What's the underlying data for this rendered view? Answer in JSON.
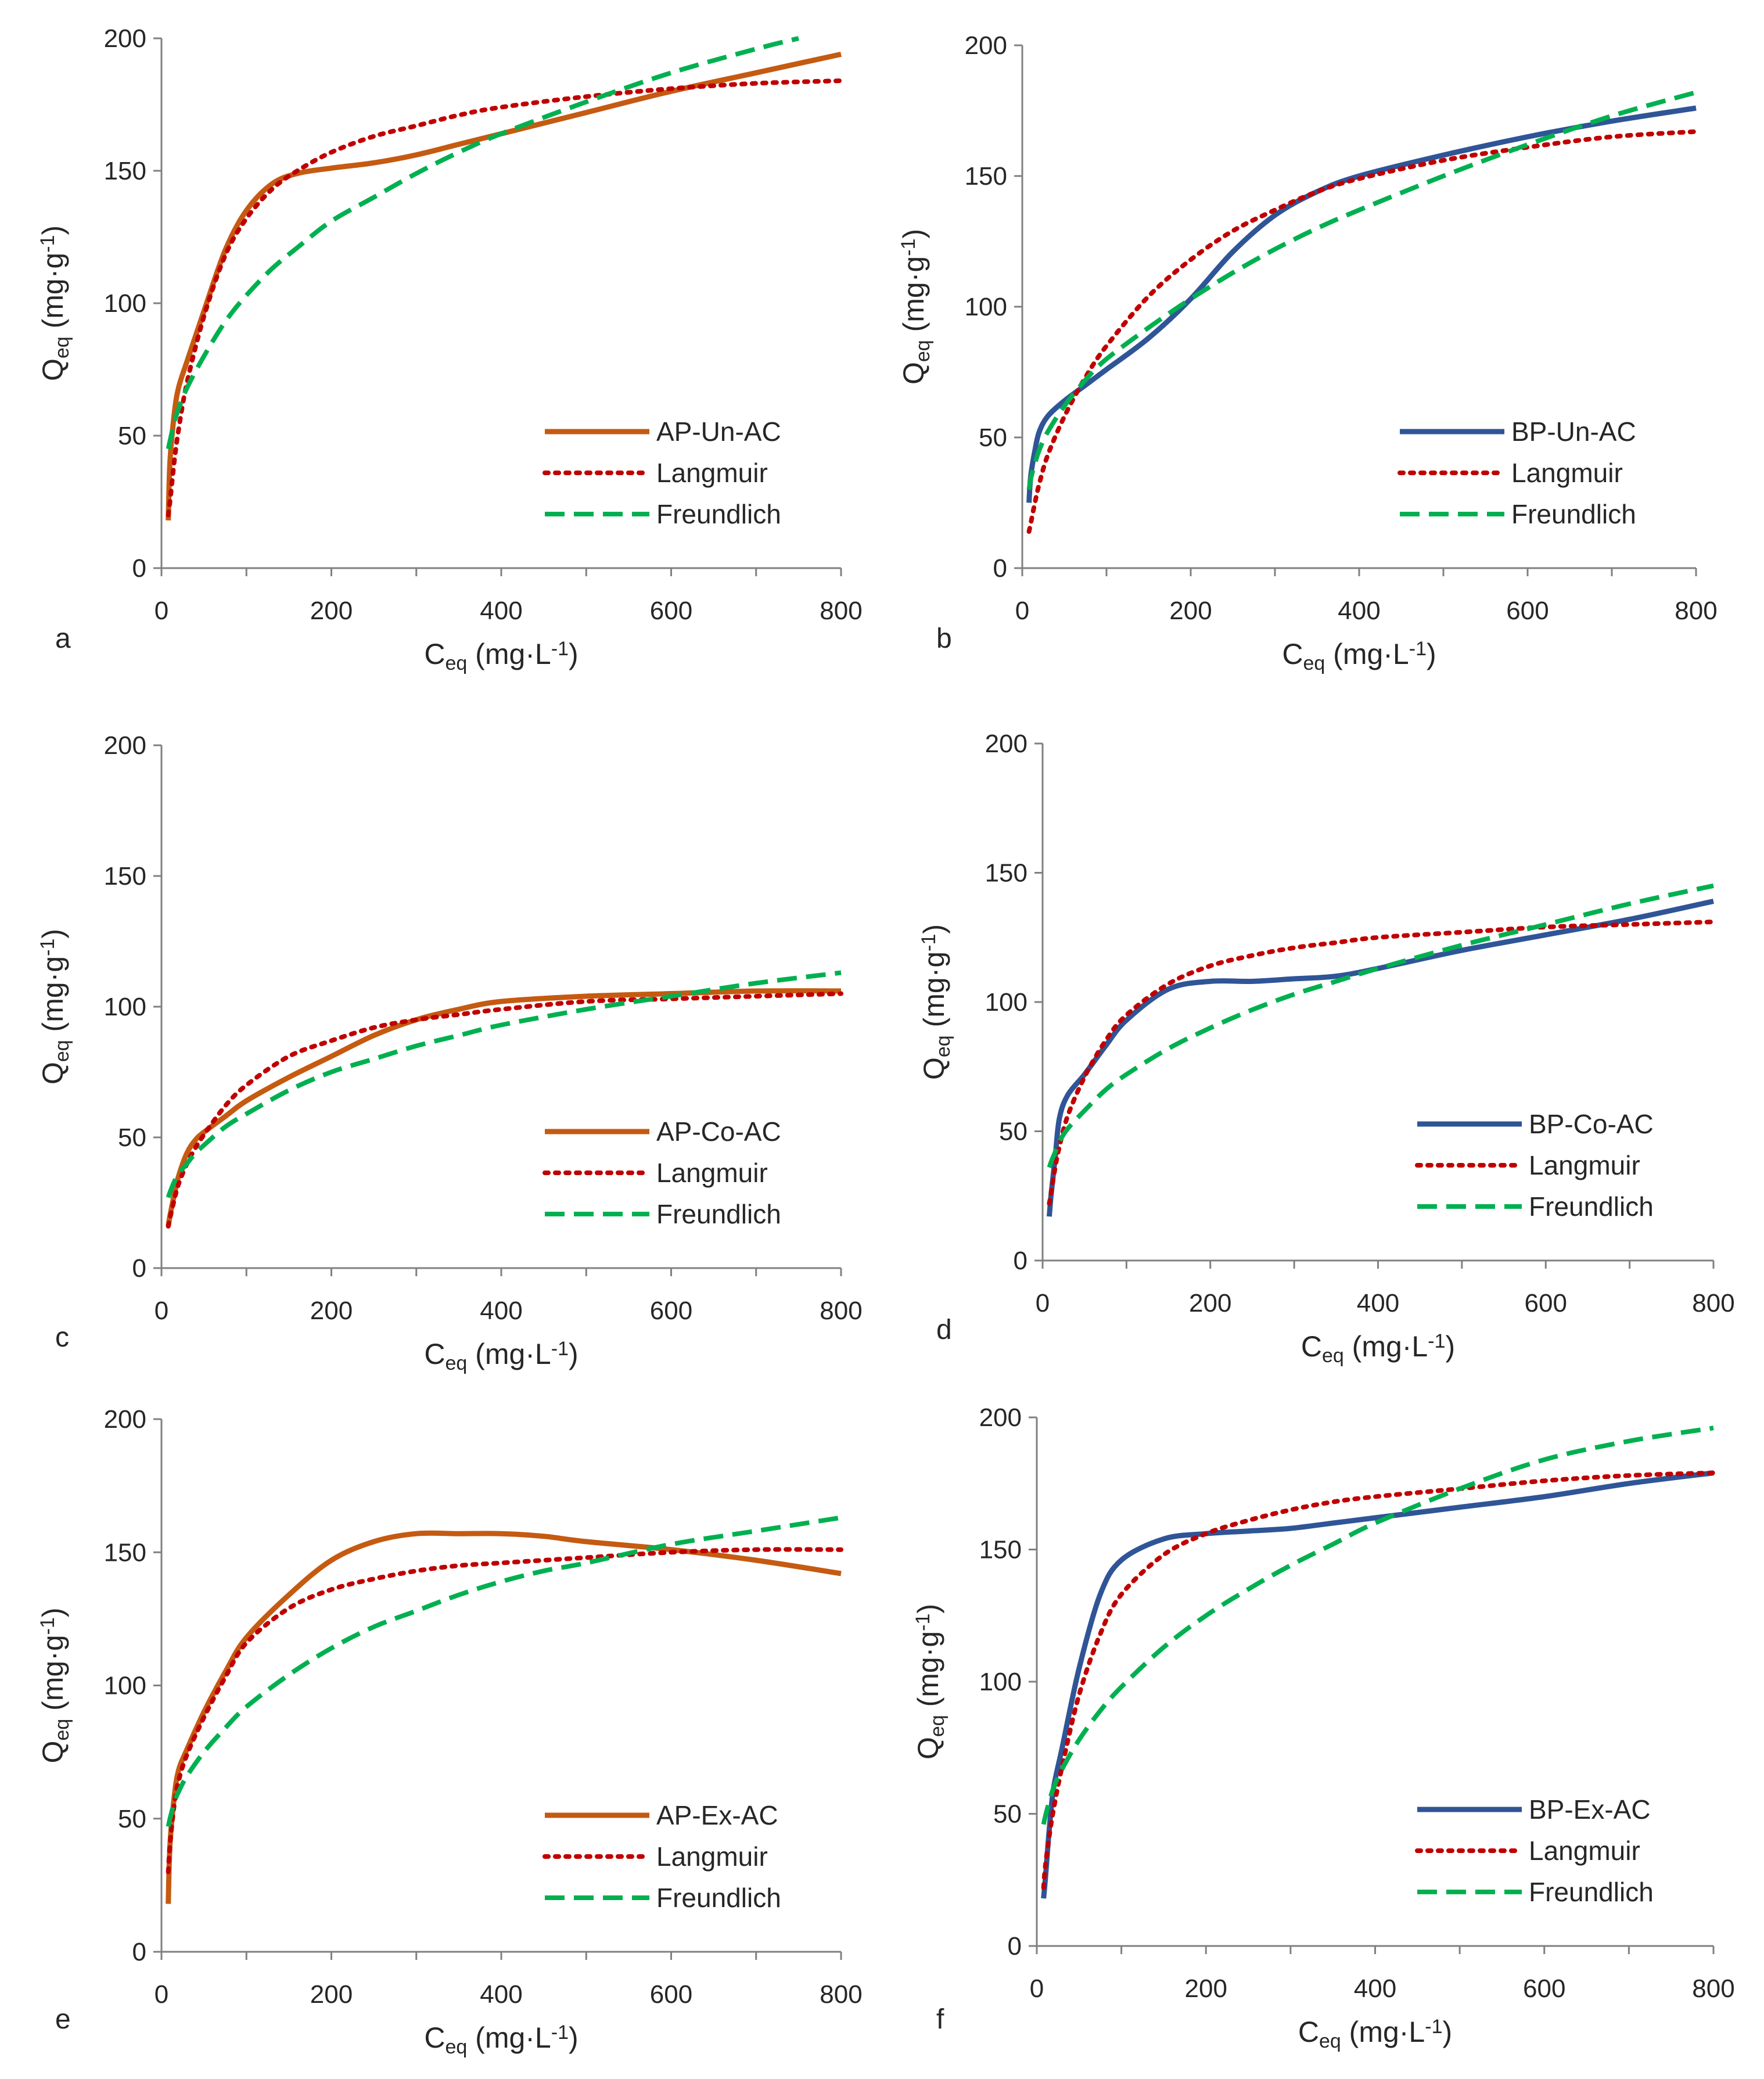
{
  "chart_data": [
    {
      "id": "a",
      "panel_label": "a",
      "type": "line",
      "xlabel": {
        "main": "C",
        "sub": "eq",
        "unit": " (mg·L",
        "sup": "-1",
        "close": ")"
      },
      "ylabel": {
        "main": "Q",
        "sub": "eq",
        "unit": " (mg·g",
        "sup": "-1",
        "close": ")"
      },
      "xlim": [
        0,
        800
      ],
      "ylim": [
        0,
        200
      ],
      "x_ticks": [
        0,
        200,
        400,
        600,
        800
      ],
      "y_ticks": [
        0,
        50,
        100,
        150,
        200
      ],
      "legend_position": "bottom-right",
      "series": [
        {
          "name": "AP-Un-AC",
          "style": "solid",
          "color": "#c55a11",
          "x": [
            8,
            10,
            15,
            20,
            30,
            50,
            75,
            100,
            130,
            160,
            200,
            250,
            300,
            350,
            400,
            500,
            600,
            700,
            800
          ],
          "y": [
            18,
            40,
            58,
            68,
            78,
            97,
            120,
            135,
            145,
            149,
            151,
            153,
            156,
            160,
            164,
            172,
            180,
            187,
            194
          ]
        },
        {
          "name": "Langmuir",
          "style": "dotted",
          "color": "#c00000",
          "x": [
            8,
            10,
            15,
            20,
            30,
            50,
            75,
            100,
            130,
            160,
            200,
            250,
            300,
            350,
            400,
            500,
            600,
            700,
            800
          ],
          "y": [
            20,
            25,
            40,
            52,
            70,
            95,
            118,
            132,
            143,
            150,
            157,
            163,
            167,
            171,
            174,
            178,
            181,
            183,
            184
          ]
        },
        {
          "name": "Freundlich",
          "style": "dashed",
          "color": "#00b050",
          "x": [
            8,
            10,
            15,
            20,
            30,
            50,
            75,
            100,
            130,
            160,
            200,
            250,
            300,
            350,
            400,
            500,
            600,
            700,
            750
          ],
          "y": [
            45,
            48,
            55,
            60,
            68,
            80,
            93,
            103,
            113,
            121,
            131,
            140,
            149,
            157,
            164,
            176,
            187,
            196,
            200
          ]
        }
      ]
    },
    {
      "id": "b",
      "panel_label": "b",
      "type": "line",
      "xlabel": {
        "main": "C",
        "sub": "eq",
        "unit": " (mg·L",
        "sup": "-1",
        "close": ")"
      },
      "ylabel": {
        "main": "Q",
        "sub": "eq",
        "unit": " (mg·g",
        "sup": "-1",
        "close": ")"
      },
      "xlim": [
        0,
        800
      ],
      "ylim": [
        0,
        200
      ],
      "x_ticks": [
        0,
        200,
        400,
        600,
        800
      ],
      "y_ticks": [
        0,
        50,
        100,
        150,
        200
      ],
      "legend_position": "bottom-right",
      "series": [
        {
          "name": "BP-Un-AC",
          "style": "solid",
          "color": "#2f5597",
          "x": [
            8,
            10,
            15,
            20,
            30,
            50,
            75,
            100,
            150,
            200,
            250,
            300,
            350,
            400,
            500,
            600,
            700,
            800
          ],
          "y": [
            25,
            35,
            45,
            52,
            58,
            64,
            70,
            76,
            88,
            103,
            121,
            135,
            144,
            150,
            158,
            165,
            171,
            176
          ]
        },
        {
          "name": "Langmuir",
          "style": "dotted",
          "color": "#c00000",
          "x": [
            8,
            10,
            15,
            20,
            30,
            50,
            75,
            100,
            150,
            200,
            250,
            300,
            350,
            400,
            500,
            600,
            700,
            800
          ],
          "y": [
            14,
            17,
            25,
            32,
            43,
            58,
            73,
            85,
            104,
            118,
            129,
            137,
            144,
            149,
            156,
            161,
            165,
            167
          ]
        },
        {
          "name": "Freundlich",
          "style": "dashed",
          "color": "#00b050",
          "x": [
            8,
            10,
            15,
            20,
            30,
            50,
            75,
            100,
            150,
            200,
            250,
            300,
            350,
            400,
            500,
            600,
            700,
            800
          ],
          "y": [
            30,
            34,
            40,
            45,
            52,
            62,
            72,
            80,
            92,
            103,
            113,
            122,
            130,
            137,
            150,
            162,
            173,
            182
          ]
        }
      ]
    },
    {
      "id": "c",
      "panel_label": "c",
      "type": "line",
      "xlabel": {
        "main": "C",
        "sub": "eq",
        "unit": " (mg·L",
        "sup": "-1",
        "close": ")"
      },
      "ylabel": {
        "main": "Q",
        "sub": "eq",
        "unit": " (mg·g",
        "sup": "-1",
        "close": ")"
      },
      "xlim": [
        0,
        800
      ],
      "ylim": [
        0,
        200
      ],
      "x_ticks": [
        0,
        200,
        400,
        600,
        800
      ],
      "y_ticks": [
        0,
        50,
        100,
        150,
        200
      ],
      "legend_position": "bottom-right",
      "series": [
        {
          "name": "AP-Co-AC",
          "style": "solid",
          "color": "#c55a11",
          "x": [
            8,
            10,
            15,
            20,
            30,
            40,
            50,
            75,
            100,
            150,
            200,
            250,
            300,
            350,
            400,
            500,
            600,
            700,
            800
          ],
          "y": [
            16,
            20,
            28,
            35,
            44,
            49,
            52,
            58,
            64,
            73,
            81,
            89,
            95,
            99,
            102,
            104,
            105,
            106,
            106
          ]
        },
        {
          "name": "Langmuir",
          "style": "dotted",
          "color": "#c00000",
          "x": [
            8,
            10,
            15,
            20,
            30,
            40,
            50,
            75,
            100,
            150,
            200,
            250,
            300,
            350,
            400,
            500,
            600,
            700,
            800
          ],
          "y": [
            16,
            19,
            26,
            32,
            40,
            46,
            51,
            62,
            70,
            81,
            87,
            92,
            95,
            97,
            99,
            102,
            103,
            104,
            105
          ]
        },
        {
          "name": "Freundlich",
          "style": "dashed",
          "color": "#00b050",
          "x": [
            8,
            10,
            15,
            20,
            30,
            40,
            50,
            75,
            100,
            150,
            200,
            250,
            300,
            350,
            400,
            500,
            600,
            700,
            800
          ],
          "y": [
            27,
            29,
            33,
            36,
            40,
            44,
            47,
            54,
            59,
            68,
            75,
            80,
            85,
            89,
            93,
            99,
            104,
            109,
            113
          ]
        }
      ]
    },
    {
      "id": "d",
      "panel_label": "d",
      "type": "line",
      "xlabel": {
        "main": "C",
        "sub": "eq",
        "unit": " (mg·L",
        "sup": "-1",
        "close": ")"
      },
      "ylabel": {
        "main": "Q",
        "sub": "eq",
        "unit": " (mg·g",
        "sup": "-1",
        "close": ")"
      },
      "xlim": [
        0,
        800
      ],
      "ylim": [
        0,
        200
      ],
      "x_ticks": [
        0,
        200,
        400,
        600,
        800
      ],
      "y_ticks": [
        0,
        50,
        100,
        150,
        200
      ],
      "legend_position": "bottom-right",
      "series": [
        {
          "name": "BP-Co-AC",
          "style": "solid",
          "color": "#2f5597",
          "x": [
            8,
            10,
            15,
            20,
            30,
            50,
            75,
            100,
            150,
            200,
            250,
            300,
            350,
            400,
            500,
            600,
            700,
            800
          ],
          "y": [
            17,
            25,
            40,
            55,
            64,
            72,
            83,
            93,
            105,
            108,
            108,
            109,
            110,
            113,
            120,
            126,
            132,
            139
          ]
        },
        {
          "name": "Langmuir",
          "style": "dotted",
          "color": "#c00000",
          "x": [
            8,
            10,
            15,
            20,
            30,
            50,
            75,
            100,
            150,
            200,
            250,
            300,
            350,
            400,
            500,
            600,
            700,
            800
          ],
          "y": [
            22,
            26,
            36,
            44,
            56,
            71,
            85,
            95,
            107,
            114,
            118,
            121,
            123,
            125,
            127,
            129,
            130,
            131
          ]
        },
        {
          "name": "Freundlich",
          "style": "dashed",
          "color": "#00b050",
          "x": [
            8,
            10,
            15,
            20,
            30,
            50,
            75,
            100,
            150,
            200,
            250,
            300,
            350,
            400,
            500,
            600,
            700,
            800
          ],
          "y": [
            36,
            38,
            42,
            46,
            51,
            58,
            66,
            72,
            82,
            90,
            97,
            103,
            108,
            113,
            122,
            130,
            138,
            145
          ]
        }
      ]
    },
    {
      "id": "e",
      "panel_label": "e",
      "type": "line",
      "xlabel": {
        "main": "C",
        "sub": "eq",
        "unit": " (mg·L",
        "sup": "-1",
        "close": ")"
      },
      "ylabel": {
        "main": "Q",
        "sub": "eq",
        "unit": " (mg·g",
        "sup": "-1",
        "close": ")"
      },
      "xlim": [
        0,
        800
      ],
      "ylim": [
        0,
        200
      ],
      "x_ticks": [
        0,
        200,
        400,
        600,
        800
      ],
      "y_ticks": [
        0,
        50,
        100,
        150,
        200
      ],
      "legend_position": "bottom-right",
      "series": [
        {
          "name": "AP-Ex-AC",
          "style": "solid",
          "color": "#c55a11",
          "x": [
            8,
            10,
            15,
            20,
            30,
            50,
            75,
            100,
            150,
            200,
            250,
            300,
            350,
            400,
            450,
            500,
            600,
            700,
            800
          ],
          "y": [
            18,
            40,
            58,
            68,
            76,
            90,
            105,
            118,
            134,
            147,
            154,
            157,
            157,
            157,
            156,
            154,
            151,
            147,
            142
          ]
        },
        {
          "name": "Langmuir",
          "style": "dotted",
          "color": "#c00000",
          "x": [
            8,
            10,
            15,
            20,
            30,
            50,
            75,
            100,
            150,
            200,
            250,
            300,
            350,
            400,
            450,
            500,
            600,
            700,
            800
          ],
          "y": [
            30,
            40,
            55,
            64,
            74,
            88,
            103,
            116,
            129,
            136,
            140,
            143,
            145,
            146,
            147,
            148,
            150,
            151,
            151
          ]
        },
        {
          "name": "Freundlich",
          "style": "dashed",
          "color": "#00b050",
          "x": [
            8,
            10,
            15,
            20,
            30,
            50,
            75,
            100,
            150,
            200,
            250,
            300,
            350,
            400,
            450,
            500,
            600,
            700,
            800
          ],
          "y": [
            47,
            50,
            56,
            60,
            66,
            75,
            84,
            92,
            104,
            114,
            122,
            128,
            134,
            139,
            143,
            146,
            153,
            158,
            163
          ]
        }
      ]
    },
    {
      "id": "f",
      "panel_label": "f",
      "type": "line",
      "xlabel": {
        "main": "C",
        "sub": "eq",
        "unit": " (mg·L",
        "sup": "-1",
        "close": ")"
      },
      "ylabel": {
        "main": "Q",
        "sub": "eq",
        "unit": " (mg·g",
        "sup": "-1",
        "close": ")"
      },
      "xlim": [
        0,
        800
      ],
      "ylim": [
        0,
        200
      ],
      "x_ticks": [
        0,
        200,
        400,
        600,
        800
      ],
      "y_ticks": [
        0,
        50,
        100,
        150,
        200
      ],
      "legend_position": "bottom-right",
      "series": [
        {
          "name": "BP-Ex-AC",
          "style": "solid",
          "color": "#2f5597",
          "x": [
            8,
            10,
            15,
            20,
            30,
            50,
            75,
            100,
            150,
            200,
            250,
            300,
            350,
            400,
            500,
            600,
            700,
            800
          ],
          "y": [
            18,
            25,
            45,
            60,
            75,
            105,
            133,
            146,
            154,
            156,
            157,
            158,
            160,
            162,
            166,
            170,
            175,
            179
          ]
        },
        {
          "name": "Langmuir",
          "style": "dotted",
          "color": "#c00000",
          "x": [
            8,
            10,
            15,
            20,
            30,
            50,
            75,
            100,
            150,
            200,
            250,
            300,
            350,
            400,
            500,
            600,
            700,
            800
          ],
          "y": [
            22,
            30,
            42,
            52,
            68,
            95,
            118,
            133,
            148,
            156,
            161,
            165,
            168,
            170,
            173,
            176,
            178,
            179
          ]
        },
        {
          "name": "Freundlich",
          "style": "dashed",
          "color": "#00b050",
          "x": [
            8,
            10,
            15,
            20,
            30,
            50,
            75,
            100,
            150,
            200,
            250,
            300,
            350,
            400,
            500,
            600,
            700,
            800
          ],
          "y": [
            46,
            49,
            55,
            60,
            67,
            78,
            89,
            98,
            113,
            125,
            135,
            144,
            152,
            160,
            173,
            184,
            191,
            196
          ]
        }
      ]
    }
  ]
}
